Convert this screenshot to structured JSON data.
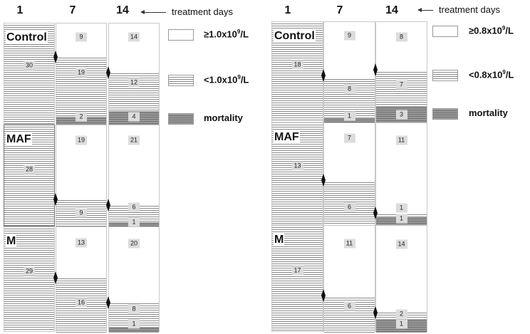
{
  "panels": [
    {
      "days": [
        "1",
        "7",
        "14"
      ],
      "arrow_label": "treatment   days",
      "legend": [
        {
          "label": "≥1.0x10",
          "sup": "9",
          "unit": "/L",
          "icon": "white-box"
        },
        {
          "label": "<1.0x10",
          "sup": "9",
          "unit": "/L",
          "icon": "hatched-box"
        },
        {
          "label": "mortality",
          "sup": "",
          "unit": "",
          "icon": "mortality-box"
        }
      ],
      "groups": [
        {
          "name": "Control",
          "day1": {
            "below": "30"
          },
          "day7": {
            "above": "9",
            "below": "19",
            "mortality": "2"
          },
          "day14": {
            "above": "14",
            "below": "12",
            "mortality": "4"
          }
        },
        {
          "name": "MAF",
          "day1": {
            "below": "28"
          },
          "day7": {
            "above": "19",
            "below": "9",
            "mortality": ""
          },
          "day14": {
            "above": "21",
            "below": "6",
            "mortality": "1"
          }
        },
        {
          "name": "M",
          "day1": {
            "below": "29"
          },
          "day7": {
            "above": "13",
            "below": "16",
            "mortality": ""
          },
          "day14": {
            "above": "20",
            "below": "8",
            "mortality": "1"
          }
        }
      ]
    },
    {
      "days": [
        "1",
        "7",
        "14"
      ],
      "arrow_label": "treatment   days",
      "legend": [
        {
          "label": "≥0.8x10",
          "sup": "9",
          "unit": "/L",
          "icon": "white-box"
        },
        {
          "label": "<0.8x10",
          "sup": "9",
          "unit": "/L",
          "icon": "hatched-box"
        },
        {
          "label": "mortality",
          "sup": "",
          "unit": "",
          "icon": "mortality-box"
        }
      ],
      "groups": [
        {
          "name": "Control",
          "day1": {
            "below": "18"
          },
          "day7": {
            "above": "9",
            "below": "8",
            "mortality": "1"
          },
          "day14": {
            "above": "8",
            "below": "7",
            "mortality": "3"
          }
        },
        {
          "name": "MAF",
          "day1": {
            "below": "13"
          },
          "day7": {
            "above": "7",
            "below": "6",
            "mortality": ""
          },
          "day14": {
            "above": "11",
            "below": "1",
            "mortality": "1"
          }
        },
        {
          "name": "M",
          "day1": {
            "below": "17"
          },
          "day7": {
            "above": "11",
            "below": "6",
            "mortality": ""
          },
          "day14": {
            "above": "14",
            "below": "2",
            "mortality": "1"
          }
        }
      ]
    }
  ]
}
